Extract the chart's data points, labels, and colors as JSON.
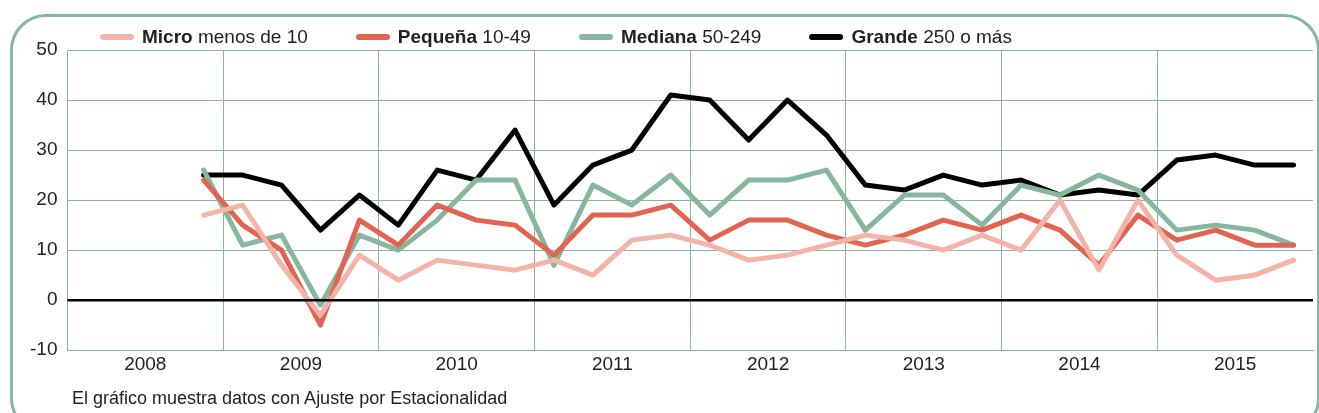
{
  "chart_data": {
    "type": "line",
    "x": [
      2008.875,
      2009.125,
      2009.375,
      2009.625,
      2009.875,
      2010.125,
      2010.375,
      2010.625,
      2010.875,
      2011.125,
      2011.375,
      2011.625,
      2011.875,
      2012.125,
      2012.375,
      2012.625,
      2012.875,
      2013.125,
      2013.375,
      2013.625,
      2013.875,
      2014.125,
      2014.375,
      2014.625,
      2014.875,
      2015.125,
      2015.375,
      2015.625,
      2015.875
    ],
    "xlim": [
      2008,
      2016
    ],
    "xticks": [
      {
        "value": 2008.5,
        "label": "2008"
      },
      {
        "value": 2009,
        "label": null
      },
      {
        "value": 2009.5,
        "label": "2009"
      },
      {
        "value": 2010,
        "label": null
      },
      {
        "value": 2010.5,
        "label": "2010"
      },
      {
        "value": 2011,
        "label": null
      },
      {
        "value": 2011.5,
        "label": "2011"
      },
      {
        "value": 2012,
        "label": null
      },
      {
        "value": 2012.5,
        "label": "2012"
      },
      {
        "value": 2013,
        "label": null
      },
      {
        "value": 2013.5,
        "label": "2013"
      },
      {
        "value": 2014,
        "label": null
      },
      {
        "value": 2014.5,
        "label": "2014"
      },
      {
        "value": 2015,
        "label": null
      },
      {
        "value": 2015.5,
        "label": "2015"
      }
    ],
    "ylim": [
      -10,
      50
    ],
    "yticks": [
      -10,
      0,
      10,
      20,
      30,
      40,
      50
    ],
    "grid": true,
    "legend": "top",
    "marker": "none",
    "line_style": "solid",
    "ref_lines": [
      {
        "axis": "y",
        "value": 0,
        "color": "#000000"
      }
    ],
    "annotations": [
      "El gráfico muestra datos con Ajuste por Estacionalidad"
    ],
    "series": [
      {
        "name": "Micro menos de 10",
        "color": "#f4b3a8",
        "values": [
          17,
          19,
          7,
          -3,
          9,
          4,
          8,
          7,
          6,
          8,
          5,
          12,
          13,
          11,
          8,
          9,
          11,
          13,
          12,
          10,
          13,
          10,
          20,
          6,
          20,
          9,
          4,
          5,
          8
        ]
      },
      {
        "name": "Pequeña 10-49",
        "color": "#e0644f",
        "values": [
          24,
          15,
          10,
          -5,
          16,
          11,
          19,
          16,
          15,
          9,
          17,
          17,
          19,
          12,
          16,
          16,
          13,
          11,
          13,
          16,
          14,
          17,
          14,
          7,
          17,
          12,
          14,
          11,
          11
        ]
      },
      {
        "name": "Mediana 50-249",
        "color": "#86b79c",
        "values": [
          26,
          11,
          13,
          -1,
          13,
          10,
          16,
          24,
          24,
          7,
          23,
          19,
          25,
          17,
          24,
          24,
          26,
          14,
          21,
          21,
          15,
          23,
          21,
          25,
          22,
          14,
          15,
          14,
          11
        ]
      },
      {
        "name": "Grande 250 o más",
        "color": "#000000",
        "values": [
          25,
          25,
          23,
          14,
          21,
          15,
          26,
          24,
          34,
          19,
          27,
          30,
          41,
          40,
          32,
          40,
          33,
          23,
          22,
          25,
          23,
          24,
          21,
          22,
          21,
          28,
          29,
          27,
          27
        ]
      }
    ]
  }
}
